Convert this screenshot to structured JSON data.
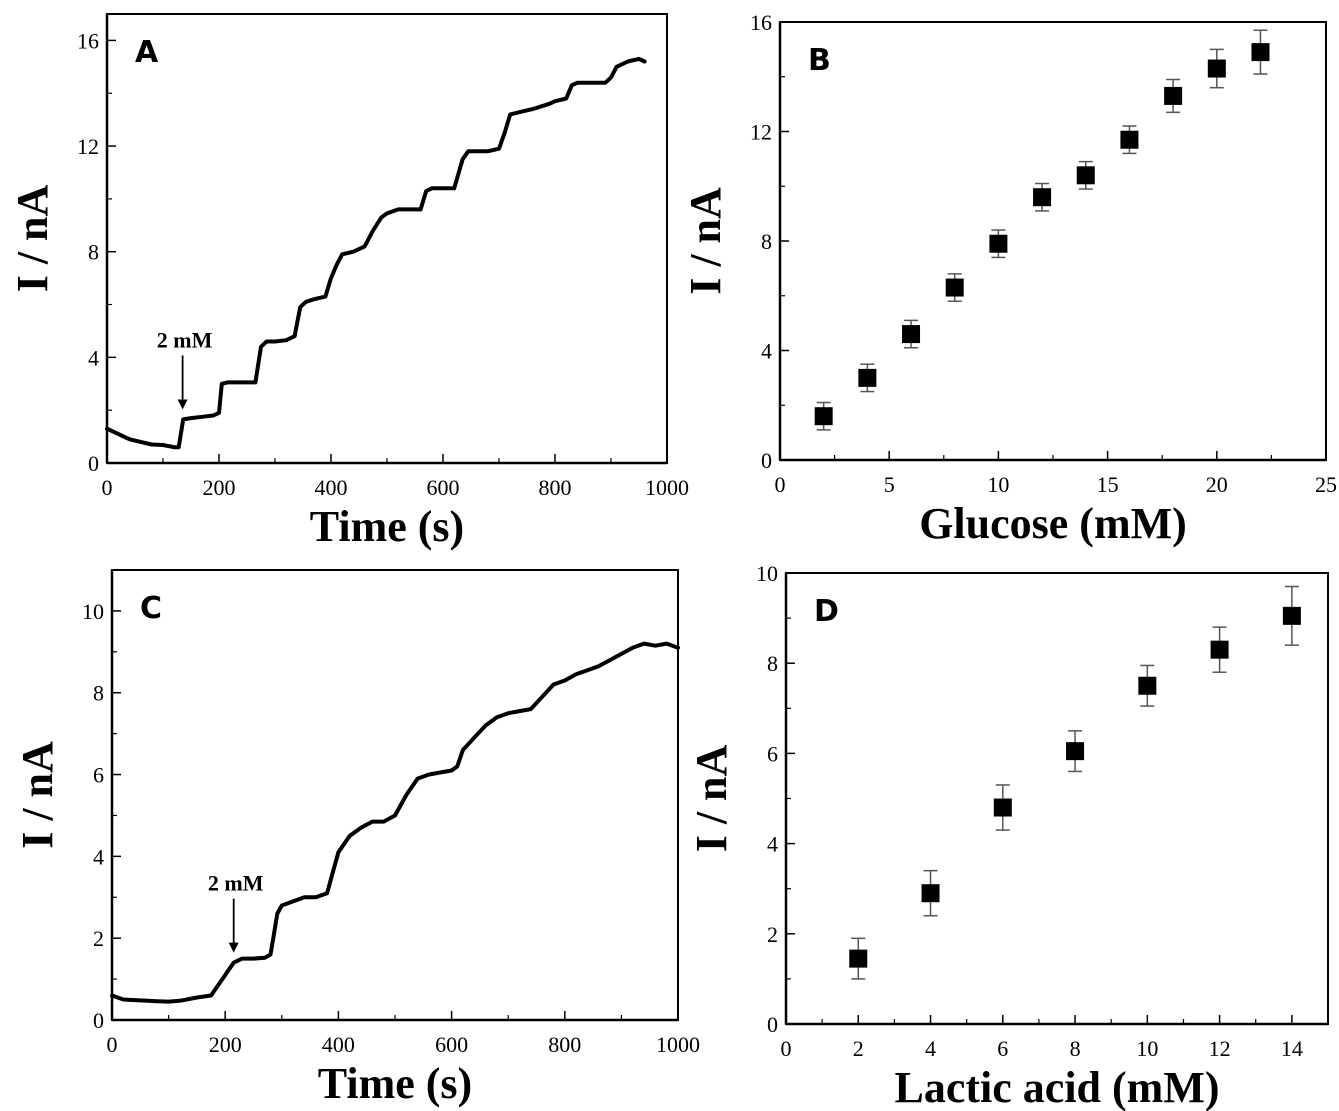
{
  "chart_data": [
    {
      "panel": "A",
      "type": "line",
      "xlabel": "Time (s)",
      "ylabel": "I / nA",
      "xlim": [
        0,
        1000
      ],
      "ylim": [
        0,
        17
      ],
      "xticks": [
        0,
        200,
        400,
        600,
        800,
        1000
      ],
      "yticks": [
        0,
        4,
        8,
        12,
        16
      ],
      "grid": false,
      "annotation": {
        "text": "2 mM",
        "x": 135,
        "y": 1.8
      },
      "series": [
        {
          "x": [
            0,
            20,
            40,
            60,
            80,
            100,
            120,
            128,
            136,
            150,
            170,
            190,
            200,
            205,
            215,
            240,
            265,
            275,
            285,
            300,
            320,
            335,
            345,
            355,
            370,
            390,
            400,
            410,
            420,
            440,
            460,
            475,
            490,
            500,
            520,
            540,
            560,
            570,
            580,
            600,
            620,
            635,
            645,
            660,
            680,
            700,
            710,
            720,
            740,
            760,
            790,
            800,
            820,
            830,
            840,
            860,
            890,
            900,
            910,
            930,
            950,
            960
          ],
          "y": [
            1.3,
            1.1,
            0.9,
            0.8,
            0.7,
            0.68,
            0.6,
            0.6,
            1.65,
            1.7,
            1.75,
            1.8,
            1.9,
            3.0,
            3.05,
            3.05,
            3.05,
            4.4,
            4.6,
            4.6,
            4.65,
            4.8,
            5.9,
            6.1,
            6.2,
            6.3,
            7.0,
            7.5,
            7.9,
            8.0,
            8.2,
            8.8,
            9.3,
            9.45,
            9.6,
            9.6,
            9.6,
            10.3,
            10.4,
            10.4,
            10.4,
            11.5,
            11.8,
            11.8,
            11.8,
            11.9,
            12.5,
            13.2,
            13.3,
            13.4,
            13.6,
            13.7,
            13.8,
            14.3,
            14.4,
            14.4,
            14.4,
            14.6,
            15.0,
            15.2,
            15.3,
            15.2
          ]
        }
      ]
    },
    {
      "panel": "B",
      "type": "scatter",
      "xlabel": "Glucose (mM)",
      "ylabel": "I / nA",
      "xlim": [
        0,
        25
      ],
      "ylim": [
        0,
        16
      ],
      "xticks": [
        0,
        5,
        10,
        15,
        20,
        25
      ],
      "yticks": [
        0,
        4,
        8,
        12,
        16
      ],
      "grid": false,
      "series": [
        {
          "x": [
            2,
            4,
            6,
            8,
            10,
            12,
            14,
            16,
            18,
            20,
            22
          ],
          "y": [
            1.6,
            3.0,
            4.6,
            6.3,
            7.9,
            9.6,
            10.4,
            11.7,
            13.3,
            14.3,
            14.9
          ],
          "err": [
            0.5,
            0.5,
            0.5,
            0.5,
            0.5,
            0.5,
            0.5,
            0.5,
            0.6,
            0.7,
            0.8
          ]
        }
      ]
    },
    {
      "panel": "C",
      "type": "line",
      "xlabel": "Time (s)",
      "ylabel": "I / nA",
      "xlim": [
        0,
        1000
      ],
      "ylim": [
        0,
        11
      ],
      "xticks": [
        0,
        200,
        400,
        600,
        800,
        1000
      ],
      "yticks": [
        0,
        2,
        4,
        6,
        8,
        10
      ],
      "grid": false,
      "annotation": {
        "text": "2 mM",
        "x": 215,
        "y": 1.5
      },
      "series": [
        {
          "x": [
            0,
            20,
            50,
            80,
            100,
            120,
            150,
            175,
            185,
            195,
            205,
            215,
            230,
            250,
            270,
            280,
            285,
            292,
            300,
            320,
            340,
            360,
            380,
            390,
            400,
            420,
            440,
            460,
            480,
            500,
            520,
            540,
            560,
            580,
            600,
            610,
            620,
            640,
            660,
            680,
            700,
            720,
            740,
            760,
            780,
            800,
            820,
            840,
            860,
            880,
            900,
            920,
            940,
            960,
            980,
            1000
          ],
          "y": [
            0.6,
            0.5,
            0.48,
            0.46,
            0.45,
            0.47,
            0.55,
            0.6,
            0.8,
            1.0,
            1.2,
            1.4,
            1.5,
            1.5,
            1.52,
            1.6,
            2.0,
            2.6,
            2.8,
            2.9,
            3.0,
            3.0,
            3.1,
            3.6,
            4.1,
            4.5,
            4.7,
            4.85,
            4.85,
            5.0,
            5.5,
            5.9,
            6.0,
            6.05,
            6.1,
            6.2,
            6.6,
            6.9,
            7.2,
            7.4,
            7.5,
            7.55,
            7.6,
            7.9,
            8.2,
            8.3,
            8.45,
            8.55,
            8.65,
            8.8,
            8.95,
            9.1,
            9.2,
            9.15,
            9.2,
            9.1
          ]
        }
      ]
    },
    {
      "panel": "D",
      "type": "scatter",
      "xlabel": "Lactic acid (mM)",
      "ylabel": "I / nA",
      "xlim": [
        0,
        15
      ],
      "ylim": [
        0,
        10
      ],
      "xticks": [
        0,
        2,
        4,
        6,
        8,
        10,
        12,
        14
      ],
      "yticks": [
        0,
        2,
        4,
        6,
        8,
        10
      ],
      "grid": false,
      "series": [
        {
          "x": [
            2,
            4,
            6,
            8,
            10,
            12,
            14
          ],
          "y": [
            1.45,
            2.9,
            4.8,
            6.05,
            7.5,
            8.3,
            9.05
          ],
          "err": [
            0.45,
            0.5,
            0.5,
            0.45,
            0.45,
            0.5,
            0.65
          ]
        }
      ]
    }
  ]
}
